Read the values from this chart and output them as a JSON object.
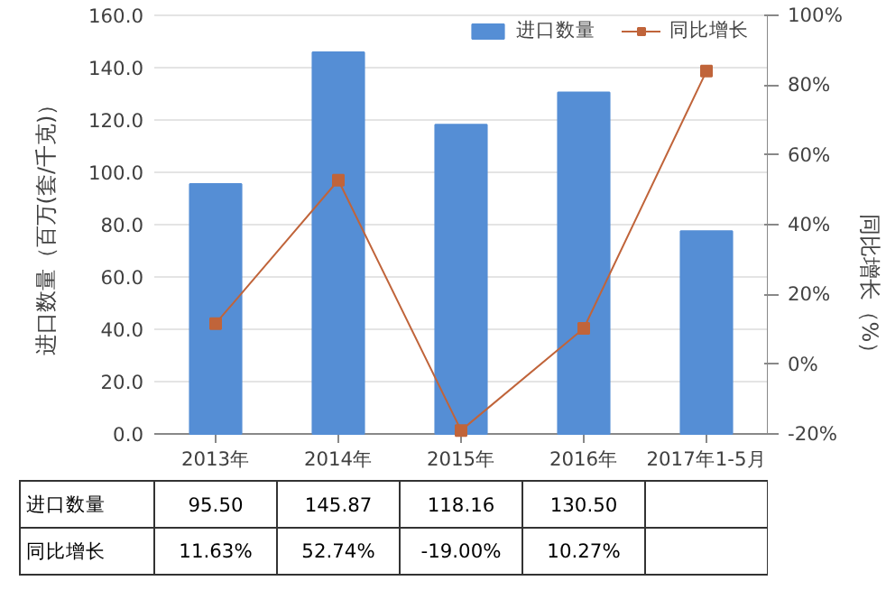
{
  "chart_data": {
    "type": "bar",
    "categories": [
      "2013年",
      "2014年",
      "2015年",
      "2016年",
      "2017年1-5月"
    ],
    "ylabel": "进口数量（百万(套/千克)）",
    "y2label": "同比增长（%）",
    "ylim": [
      0,
      160
    ],
    "yticks": [
      {
        "value": 0,
        "label": "0.0"
      },
      {
        "value": 20,
        "label": "20.0"
      },
      {
        "value": 40,
        "label": "40.0"
      },
      {
        "value": 60,
        "label": "60.0"
      },
      {
        "value": 80,
        "label": "80.0"
      },
      {
        "value": 100,
        "label": "100.0"
      },
      {
        "value": 120,
        "label": "120.0"
      },
      {
        "value": 140,
        "label": "140.0"
      },
      {
        "value": 160,
        "label": "160.0"
      }
    ],
    "y2lim": [
      -20,
      100
    ],
    "y2ticks": [
      {
        "value": -20,
        "label": "-20%"
      },
      {
        "value": 0,
        "label": "0%"
      },
      {
        "value": 20,
        "label": "20%"
      },
      {
        "value": 40,
        "label": "40%"
      },
      {
        "value": 60,
        "label": "60%"
      },
      {
        "value": 80,
        "label": "80%"
      },
      {
        "value": 100,
        "label": "100%"
      }
    ],
    "grid": "y",
    "legend": "top right",
    "series": [
      {
        "name": "进口数量",
        "color": "#558ed5",
        "values": [
          95.5,
          145.87,
          118.16,
          130.5,
          77.5
        ],
        "value_labels": [
          "95.50",
          "145.87",
          "118.16",
          "130.50",
          null
        ]
      },
      {
        "name": "同比增长",
        "type": "line",
        "axis": "y2",
        "color": "#c0643a",
        "marker": "square",
        "line_style": "solid",
        "values": [
          11.63,
          52.74,
          -19.0,
          10.27,
          84
        ],
        "value_labels": [
          "11.63%",
          "52.74%",
          "-19.00%",
          "10.27%",
          null
        ]
      }
    ]
  }
}
